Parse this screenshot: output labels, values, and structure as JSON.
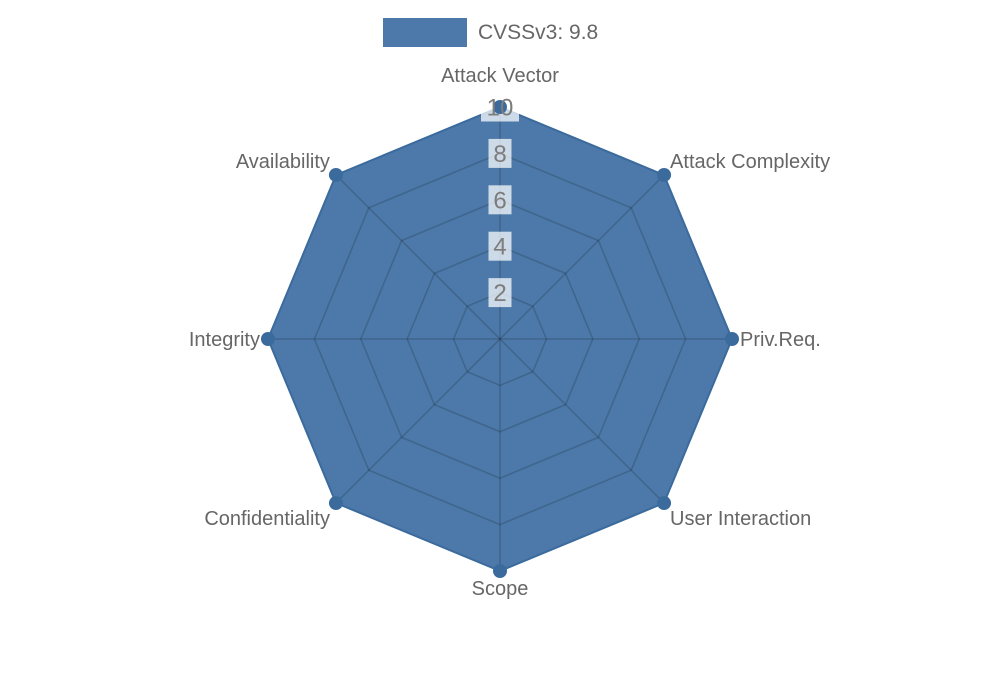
{
  "page": {
    "background": "#ffffff"
  },
  "legend": {
    "label": "CVSSv3: 9.8",
    "swatch_color": "#4c79a9"
  },
  "chart_data": {
    "type": "radar",
    "title": "CVSSv3: 9.8",
    "categories": [
      "Attack Vector",
      "Attack Complexity",
      "Priv.Req.",
      "User Interaction",
      "Scope",
      "Confidentiality",
      "Integrity",
      "Availability"
    ],
    "series": [
      {
        "name": "CVSSv3: 9.8",
        "values": [
          10,
          10,
          10,
          10,
          10,
          10,
          10,
          10
        ]
      }
    ],
    "ticks": [
      2,
      4,
      6,
      8,
      10
    ],
    "rmin": 0,
    "rmax": 10,
    "grid": true,
    "grid_shape": "polygon",
    "legend_position": "top",
    "colors": {
      "fill": "#4c79a9",
      "border": "#3b6b9d",
      "point": "#3b6b9d",
      "grid": "rgba(0,0,0,0.16)",
      "tick_text": "#7c7c7c",
      "tick_backdrop": "rgba(255,255,255,0.72)",
      "axis_label": "#666666"
    }
  }
}
